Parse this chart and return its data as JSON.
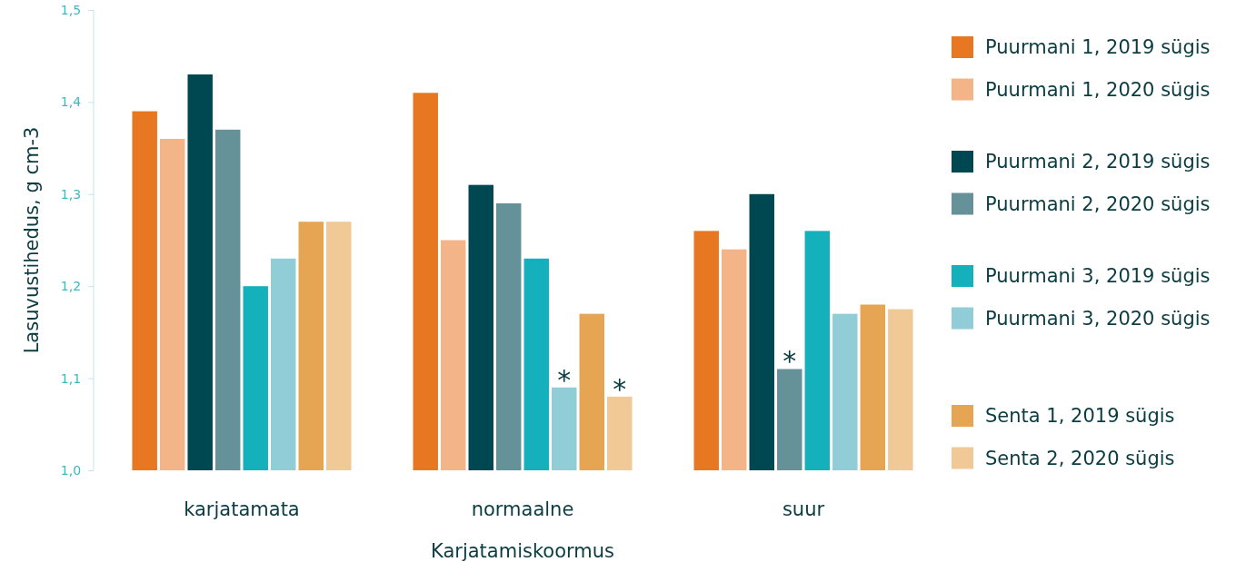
{
  "chart_data": {
    "type": "bar",
    "xlabel": "Karjatamiskoormus",
    "ylabel": "Lasuvustihedus, g cm-3",
    "categories": [
      "karjatamata",
      "normaalne",
      "suur"
    ],
    "series": [
      {
        "name": "Puurmani 1, 2019 sügis",
        "color": "#e87722",
        "values": [
          1.39,
          1.41,
          1.26
        ]
      },
      {
        "name": "Puurmani 1, 2020 sügis",
        "color": "#f3b487",
        "values": [
          1.36,
          1.25,
          1.24
        ]
      },
      {
        "name": "Puurmani 2, 2019 sügis",
        "color": "#004851",
        "values": [
          1.43,
          1.31,
          1.3
        ]
      },
      {
        "name": "Puurmani 2, 2020 sügis",
        "color": "#659299",
        "values": [
          1.37,
          1.29,
          1.11
        ],
        "value_labels": [
          null,
          null,
          "*"
        ]
      },
      {
        "name": "Puurmani 3, 2019 sügis",
        "color": "#14b1bd",
        "values": [
          1.2,
          1.23,
          1.26
        ]
      },
      {
        "name": "Puurmani 3, 2020 sügis",
        "color": "#90cdd7",
        "values": [
          1.23,
          1.09,
          1.17
        ],
        "value_labels": [
          null,
          "*",
          null
        ]
      },
      {
        "name": "Senta 1, 2019 sügis",
        "color": "#e5a552",
        "values": [
          1.27,
          1.17,
          1.18
        ]
      },
      {
        "name": "Senta 2, 2020 sügis",
        "color": "#f0c997",
        "values": [
          1.27,
          1.08,
          1.175
        ],
        "value_labels": [
          null,
          "*",
          null
        ]
      }
    ],
    "ylim": [
      1.0,
      1.5
    ],
    "yticks": [
      {
        "value": 1.0,
        "label": "1,0"
      },
      {
        "value": 1.1,
        "label": "1,1"
      },
      {
        "value": 1.2,
        "label": "1,2"
      },
      {
        "value": 1.3,
        "label": "1,3"
      },
      {
        "value": 1.4,
        "label": "1,4"
      },
      {
        "value": 1.5,
        "label": "1,5"
      }
    ],
    "grid": false,
    "legend": "right"
  }
}
